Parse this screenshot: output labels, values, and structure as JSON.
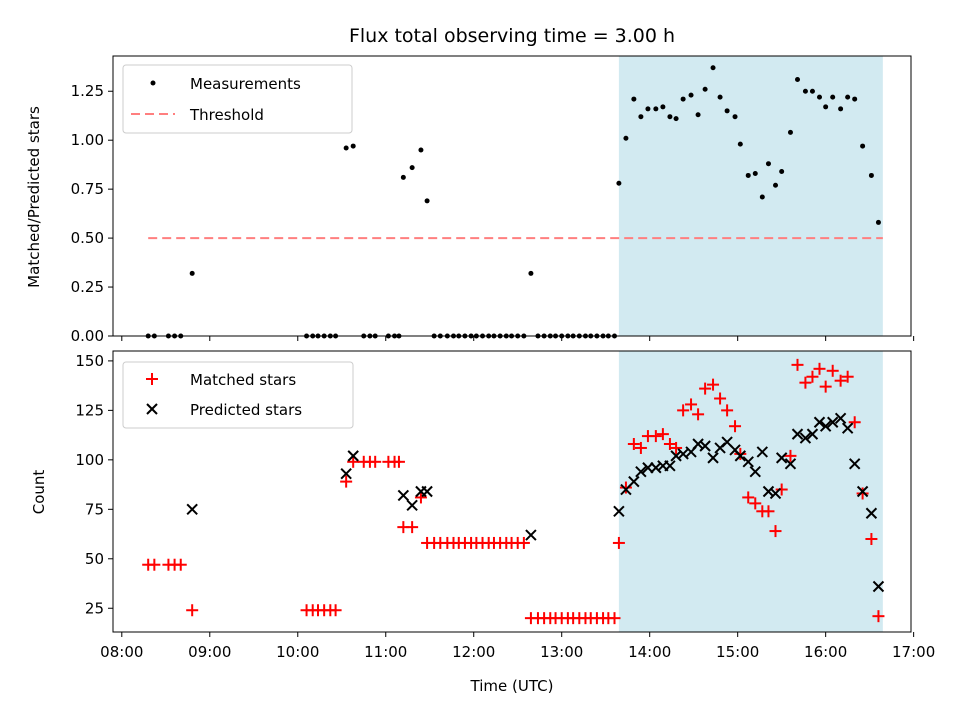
{
  "chart_data": {
    "title": "Flux total observing time = 3.00 h",
    "xlabel": "Time (UTC)",
    "x_ticks": [
      "08:00",
      "09:00",
      "10:00",
      "11:00",
      "12:00",
      "13:00",
      "14:00",
      "15:00",
      "16:00",
      "17:00"
    ],
    "x_range_hours": [
      7.9,
      16.97
    ],
    "highlight_span_hours": [
      13.65,
      16.65
    ],
    "highlight_color": "#add8e6",
    "panels": [
      {
        "type": "scatter",
        "ylabel": "Matched/Predicted stars",
        "ylim": [
          0,
          1.43
        ],
        "y_ticks": [
          "0.00",
          "0.25",
          "0.50",
          "0.75",
          "1.00",
          "1.25"
        ],
        "threshold": {
          "value": 0.5,
          "x_range_hours": [
            8.3,
            16.65
          ],
          "color": "#ff7f7f"
        },
        "legend": [
          "Measurements",
          "Threshold"
        ],
        "series": [
          {
            "name": "Measurements",
            "marker": "dot",
            "color": "#000000",
            "points": [
              [
                8.3,
                0
              ],
              [
                8.37,
                0
              ],
              [
                8.53,
                0
              ],
              [
                8.6,
                0
              ],
              [
                8.67,
                0
              ],
              [
                8.8,
                0.32
              ],
              [
                10.1,
                0
              ],
              [
                10.17,
                0
              ],
              [
                10.23,
                0
              ],
              [
                10.3,
                0
              ],
              [
                10.37,
                0
              ],
              [
                10.43,
                0
              ],
              [
                10.55,
                0.96
              ],
              [
                10.63,
                0.97
              ],
              [
                10.75,
                0
              ],
              [
                10.82,
                0
              ],
              [
                10.88,
                0
              ],
              [
                11.03,
                0
              ],
              [
                11.1,
                0
              ],
              [
                11.15,
                0
              ],
              [
                11.2,
                0.81
              ],
              [
                11.3,
                0.86
              ],
              [
                11.4,
                0.95
              ],
              [
                11.47,
                0.69
              ],
              [
                11.55,
                0
              ],
              [
                11.62,
                0
              ],
              [
                11.7,
                0
              ],
              [
                11.77,
                0
              ],
              [
                11.83,
                0
              ],
              [
                11.9,
                0
              ],
              [
                11.97,
                0
              ],
              [
                12.03,
                0
              ],
              [
                12.1,
                0
              ],
              [
                12.17,
                0
              ],
              [
                12.23,
                0
              ],
              [
                12.3,
                0
              ],
              [
                12.37,
                0
              ],
              [
                12.43,
                0
              ],
              [
                12.5,
                0
              ],
              [
                12.57,
                0
              ],
              [
                12.65,
                0.32
              ],
              [
                12.73,
                0
              ],
              [
                12.8,
                0
              ],
              [
                12.87,
                0
              ],
              [
                12.93,
                0
              ],
              [
                13.0,
                0
              ],
              [
                13.07,
                0
              ],
              [
                13.13,
                0
              ],
              [
                13.2,
                0
              ],
              [
                13.27,
                0
              ],
              [
                13.33,
                0
              ],
              [
                13.4,
                0
              ],
              [
                13.47,
                0
              ],
              [
                13.53,
                0
              ],
              [
                13.6,
                0
              ],
              [
                13.65,
                0.78
              ],
              [
                13.73,
                1.01
              ],
              [
                13.82,
                1.21
              ],
              [
                13.9,
                1.12
              ],
              [
                13.98,
                1.16
              ],
              [
                14.07,
                1.16
              ],
              [
                14.15,
                1.17
              ],
              [
                14.23,
                1.12
              ],
              [
                14.3,
                1.11
              ],
              [
                14.38,
                1.21
              ],
              [
                14.47,
                1.23
              ],
              [
                14.55,
                1.13
              ],
              [
                14.63,
                1.26
              ],
              [
                14.72,
                1.37
              ],
              [
                14.8,
                1.22
              ],
              [
                14.88,
                1.15
              ],
              [
                14.97,
                1.12
              ],
              [
                15.03,
                0.98
              ],
              [
                15.12,
                0.82
              ],
              [
                15.2,
                0.83
              ],
              [
                15.28,
                0.71
              ],
              [
                15.35,
                0.88
              ],
              [
                15.43,
                0.77
              ],
              [
                15.5,
                0.84
              ],
              [
                15.6,
                1.04
              ],
              [
                15.68,
                1.31
              ],
              [
                15.77,
                1.25
              ],
              [
                15.85,
                1.25
              ],
              [
                15.93,
                1.22
              ],
              [
                16.0,
                1.17
              ],
              [
                16.08,
                1.22
              ],
              [
                16.17,
                1.16
              ],
              [
                16.25,
                1.22
              ],
              [
                16.33,
                1.21
              ],
              [
                16.42,
                0.97
              ],
              [
                16.52,
                0.82
              ],
              [
                16.6,
                0.58
              ]
            ]
          }
        ]
      },
      {
        "type": "scatter",
        "ylabel": "Count",
        "ylim": [
          13,
          155
        ],
        "y_ticks": [
          "25",
          "50",
          "75",
          "100",
          "125",
          "150"
        ],
        "legend": [
          "Matched stars",
          "Predicted stars"
        ],
        "series": [
          {
            "name": "Matched stars",
            "marker": "plus",
            "color": "#ff0000",
            "points": [
              [
                8.3,
                47
              ],
              [
                8.37,
                47
              ],
              [
                8.53,
                47
              ],
              [
                8.6,
                47
              ],
              [
                8.67,
                47
              ],
              [
                8.8,
                24
              ],
              [
                10.1,
                24
              ],
              [
                10.17,
                24
              ],
              [
                10.23,
                24
              ],
              [
                10.3,
                24
              ],
              [
                10.37,
                24
              ],
              [
                10.43,
                24
              ],
              [
                10.55,
                89
              ],
              [
                10.63,
                99
              ],
              [
                10.75,
                99
              ],
              [
                10.82,
                99
              ],
              [
                10.88,
                99
              ],
              [
                11.03,
                99
              ],
              [
                11.1,
                99
              ],
              [
                11.15,
                99
              ],
              [
                11.2,
                66
              ],
              [
                11.3,
                66
              ],
              [
                11.4,
                81
              ],
              [
                11.47,
                58
              ],
              [
                11.55,
                58
              ],
              [
                11.62,
                58
              ],
              [
                11.7,
                58
              ],
              [
                11.77,
                58
              ],
              [
                11.83,
                58
              ],
              [
                11.9,
                58
              ],
              [
                11.97,
                58
              ],
              [
                12.03,
                58
              ],
              [
                12.1,
                58
              ],
              [
                12.17,
                58
              ],
              [
                12.23,
                58
              ],
              [
                12.3,
                58
              ],
              [
                12.37,
                58
              ],
              [
                12.43,
                58
              ],
              [
                12.5,
                58
              ],
              [
                12.57,
                58
              ],
              [
                12.65,
                20
              ],
              [
                12.73,
                20
              ],
              [
                12.8,
                20
              ],
              [
                12.87,
                20
              ],
              [
                12.93,
                20
              ],
              [
                13.0,
                20
              ],
              [
                13.07,
                20
              ],
              [
                13.13,
                20
              ],
              [
                13.2,
                20
              ],
              [
                13.27,
                20
              ],
              [
                13.33,
                20
              ],
              [
                13.4,
                20
              ],
              [
                13.47,
                20
              ],
              [
                13.53,
                20
              ],
              [
                13.6,
                20
              ],
              [
                13.65,
                58
              ],
              [
                13.73,
                86
              ],
              [
                13.82,
                108
              ],
              [
                13.9,
                106
              ],
              [
                13.98,
                112
              ],
              [
                14.07,
                112
              ],
              [
                14.15,
                113
              ],
              [
                14.23,
                108
              ],
              [
                14.3,
                106
              ],
              [
                14.38,
                125
              ],
              [
                14.47,
                128
              ],
              [
                14.55,
                123
              ],
              [
                14.63,
                136
              ],
              [
                14.72,
                138
              ],
              [
                14.8,
                131
              ],
              [
                14.88,
                125
              ],
              [
                14.97,
                117
              ],
              [
                15.03,
                103
              ],
              [
                15.12,
                81
              ],
              [
                15.2,
                78
              ],
              [
                15.28,
                74
              ],
              [
                15.35,
                74
              ],
              [
                15.43,
                64
              ],
              [
                15.5,
                85
              ],
              [
                15.6,
                102
              ],
              [
                15.68,
                148
              ],
              [
                15.77,
                139
              ],
              [
                15.85,
                142
              ],
              [
                15.93,
                146
              ],
              [
                16.0,
                137
              ],
              [
                16.08,
                145
              ],
              [
                16.17,
                140
              ],
              [
                16.25,
                142
              ],
              [
                16.33,
                119
              ],
              [
                16.42,
                83
              ],
              [
                16.52,
                60
              ],
              [
                16.6,
                21
              ]
            ]
          },
          {
            "name": "Predicted stars",
            "marker": "x",
            "color": "#000000",
            "points": [
              [
                8.8,
                75
              ],
              [
                10.55,
                93
              ],
              [
                10.63,
                102
              ],
              [
                11.2,
                82
              ],
              [
                11.3,
                77
              ],
              [
                11.4,
                84
              ],
              [
                11.47,
                84
              ],
              [
                12.65,
                62
              ],
              [
                13.65,
                74
              ],
              [
                13.73,
                85
              ],
              [
                13.82,
                89
              ],
              [
                13.9,
                94
              ],
              [
                13.98,
                96
              ],
              [
                14.07,
                96
              ],
              [
                14.15,
                97
              ],
              [
                14.23,
                97
              ],
              [
                14.3,
                102
              ],
              [
                14.38,
                103
              ],
              [
                14.47,
                104
              ],
              [
                14.55,
                108
              ],
              [
                14.63,
                107
              ],
              [
                14.72,
                101
              ],
              [
                14.8,
                106
              ],
              [
                14.88,
                109
              ],
              [
                14.97,
                105
              ],
              [
                15.03,
                102
              ],
              [
                15.12,
                99
              ],
              [
                15.2,
                94
              ],
              [
                15.28,
                104
              ],
              [
                15.35,
                84
              ],
              [
                15.43,
                83
              ],
              [
                15.5,
                101
              ],
              [
                15.6,
                98
              ],
              [
                15.68,
                113
              ],
              [
                15.77,
                111
              ],
              [
                15.85,
                113
              ],
              [
                15.93,
                119
              ],
              [
                16.0,
                117
              ],
              [
                16.08,
                119
              ],
              [
                16.17,
                121
              ],
              [
                16.25,
                116
              ],
              [
                16.33,
                98
              ],
              [
                16.42,
                84
              ],
              [
                16.52,
                73
              ],
              [
                16.6,
                36
              ]
            ]
          }
        ]
      }
    ]
  }
}
